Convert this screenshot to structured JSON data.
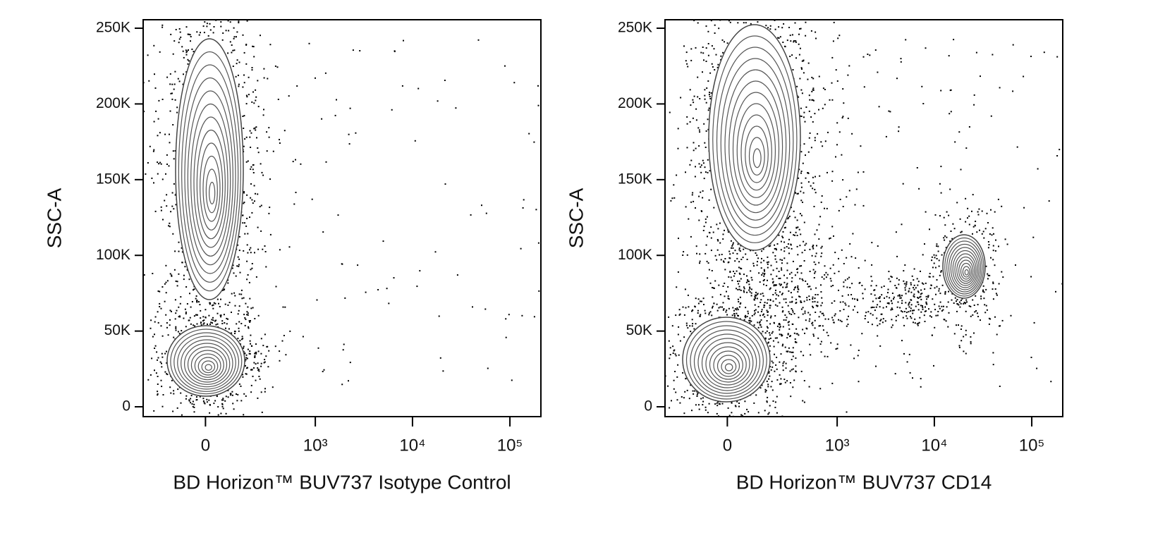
{
  "chart_data": [
    {
      "type": "contour",
      "x_label": "BD Horizon™ BUV737 Isotype Control",
      "y_label": "SSC-A",
      "xscale": "biexponential",
      "xlim": [
        -310,
        208000
      ],
      "xticks": [
        0,
        {
          "value": 1000,
          "label": "10³"
        },
        {
          "value": 10000,
          "label": "10⁴"
        },
        {
          "value": 100000,
          "label": "10⁵"
        }
      ],
      "ylim": [
        -6500,
        255600
      ],
      "yticks": [
        0,
        {
          "value": 50000,
          "label": "50K"
        },
        {
          "value": 100000,
          "label": "100K"
        },
        {
          "value": 150000,
          "label": "150K"
        },
        {
          "value": 200000,
          "label": "200K"
        },
        {
          "value": 250000,
          "label": "250K"
        }
      ]
    },
    {
      "type": "contour",
      "x_label": "BD Horizon™ BUV737  CD14",
      "y_label": "SSC-A",
      "xscale": "biexponential",
      "xlim": [
        -310,
        208000
      ],
      "xticks": [
        0,
        {
          "value": 1000,
          "label": "10³"
        },
        {
          "value": 10000,
          "label": "10⁴"
        },
        {
          "value": 100000,
          "label": "10⁵"
        }
      ],
      "ylim": [
        -6500,
        255600
      ],
      "yticks": [
        0,
        {
          "value": 50000,
          "label": "50K"
        },
        {
          "value": 100000,
          "label": "100K"
        },
        {
          "value": 150000,
          "label": "150K"
        },
        {
          "value": 200000,
          "label": "200K"
        },
        {
          "value": 250000,
          "label": "250K"
        }
      ]
    }
  ]
}
